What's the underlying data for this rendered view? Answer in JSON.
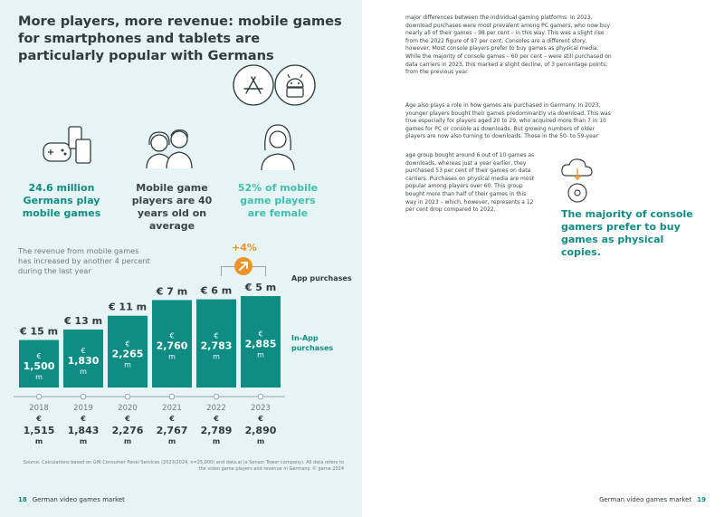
{
  "left_page": {
    "headline": "More players, more revenue: mobile games for smartphones and tablets are particularly popular with Germans",
    "stats": [
      {
        "text": "24.6 million Germans play mobile games"
      },
      {
        "text": "Mobile game players are 40 years old on average"
      },
      {
        "text": "52% of mobile game players are female"
      }
    ],
    "revenue_label": "The revenue from mobile games has increased by another 4 percent during the last year",
    "growth_badge": "+4%",
    "legend_app": "App purchases",
    "legend_inapp": "In-App purchases",
    "source": "Source: Calculations based on GfK Consumer Panel Services (2023/2024, n=25,000) and data.ai (a Sensor Tower company). All data refers to the video game players and revenue in Germany. © game 2024",
    "footer_page": "18",
    "footer_text": "German video games market"
  },
  "chart_data": {
    "type": "bar",
    "categories": [
      "2018",
      "2019",
      "2020",
      "2021",
      "2022",
      "2023"
    ],
    "series": [
      {
        "name": "In-App purchases",
        "values": [
          1500,
          1830,
          2265,
          2760,
          2783,
          2885
        ],
        "labels": [
          "€ 1,500 m",
          "€ 1,830 m",
          "€ 2,265 m",
          "€ 2,760 m",
          "€ 2,783 m",
          "€ 2,885 m"
        ]
      },
      {
        "name": "App purchases",
        "values": [
          15,
          13,
          11,
          7,
          6,
          5
        ],
        "labels": [
          "€ 15 m",
          "€ 13 m",
          "€ 11 m",
          "€ 7 m",
          "€ 6 m",
          "€ 5 m"
        ]
      }
    ],
    "totals": [
      1515,
      1843,
      2276,
      2767,
      2789,
      2890
    ],
    "total_labels": [
      "€ 1,515 m",
      "€ 1,843 m",
      "€ 2,276 m",
      "€ 2,767 m",
      "€ 2,789 m",
      "€ 2,890 m"
    ],
    "bar_color": "#0f8d84",
    "ylim": [
      0,
      3200
    ]
  },
  "right_page": {
    "paragraph1": "major differences between the individual gaming platforms. In 2023, download purchases were most prevalent among PC gamers, who now buy nearly all of their games – 98 per cent – in this way. This was a slight rise from the 2022 figure of 97 per cent. Consoles are a different story, however: Most console players prefer to buy games as physical media. While the majority of console games – 60 per cent – were still purchased on data carriers in 2023, this marked a slight decline, of 3 percentage points, from the previous year.",
    "paragraph2": "Age also plays a role in how games are purchased in Germany. In 2023, younger players bought their games predominantly via download. This was true especially for players aged 20 to 29, who acquired more than 7 in 10 games for PC or console as downloads. But growing numbers of older players are now also turning to downloads. Those in the 50- to 59-year",
    "paragraph3": "age group bought around 6 out of 10 games as downloads, whereas just a year earlier, they purchased 53 per cent of their games on data carriers. Purchases on physical media are most popular among players over 60. This group bought more than half of their games in this way in 2023 – which, however, represents a 12 per cent drop compared to 2022.",
    "quote": "The majority of console gamers prefer to buy games as physical copies.",
    "footer_text": "German video games market",
    "footer_page": "19"
  }
}
